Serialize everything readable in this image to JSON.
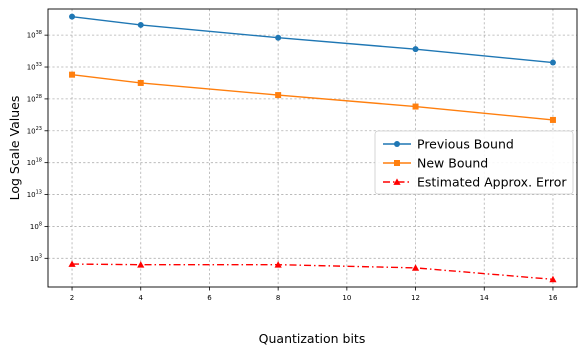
{
  "chart_data": {
    "type": "line",
    "title": "",
    "xlabel": "Quantization bits",
    "ylabel": "Log Scale Values",
    "y_scale": "log",
    "x": [
      2,
      4,
      8,
      12,
      16
    ],
    "x_ticks": [
      2,
      4,
      6,
      8,
      10,
      12,
      14,
      16
    ],
    "x_tick_labels": [
      "2",
      "4",
      "6",
      "8",
      "10",
      "12",
      "14",
      "16"
    ],
    "xlim": [
      1.3,
      16.7
    ],
    "y_tick_exponents": [
      3,
      8,
      13,
      18,
      23,
      28,
      33,
      38
    ],
    "ylim_exponent": [
      -1.5,
      42.1
    ],
    "grid": true,
    "legend_position": "center-right",
    "series": [
      {
        "name": "Previous Bound",
        "color": "#1f77b4",
        "marker": "circle",
        "line_style": "solid",
        "log10_values": [
          40.9,
          39.6,
          37.6,
          35.8,
          33.7
        ]
      },
      {
        "name": "New Bound",
        "color": "#ff7f0e",
        "marker": "square",
        "line_style": "solid",
        "log10_values": [
          31.8,
          30.5,
          28.6,
          26.8,
          24.7
        ]
      },
      {
        "name": "Estimated Approx. Error",
        "color": "#ff0000",
        "marker": "triangle",
        "line_style": "dashdot",
        "log10_values": [
          2.1,
          2.0,
          2.0,
          1.5,
          -0.3
        ]
      }
    ]
  }
}
